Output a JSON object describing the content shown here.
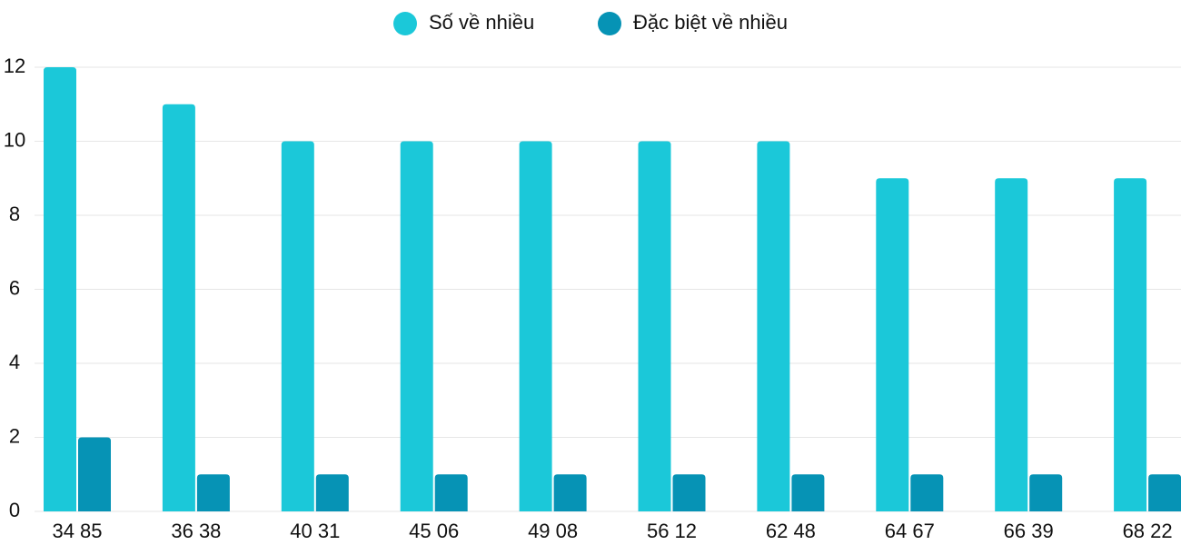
{
  "chart_data": {
    "type": "bar",
    "categories": [
      "34 85",
      "36 38",
      "40 31",
      "45 06",
      "49 08",
      "56 12",
      "62 48",
      "64 67",
      "66 39",
      "68 22"
    ],
    "series": [
      {
        "name": "Số về nhiều",
        "color": "#1bc8d9",
        "values": [
          12,
          11,
          10,
          10,
          10,
          10,
          10,
          9,
          9,
          9
        ]
      },
      {
        "name": "Đặc biệt về nhiều",
        "color": "#0693b5",
        "values": [
          2,
          1,
          1,
          1,
          1,
          1,
          1,
          1,
          1,
          1
        ]
      }
    ],
    "ylim": [
      0,
      12
    ],
    "yticks": [
      0,
      2,
      4,
      6,
      8,
      10,
      12
    ],
    "grid": true,
    "legend": "top"
  }
}
